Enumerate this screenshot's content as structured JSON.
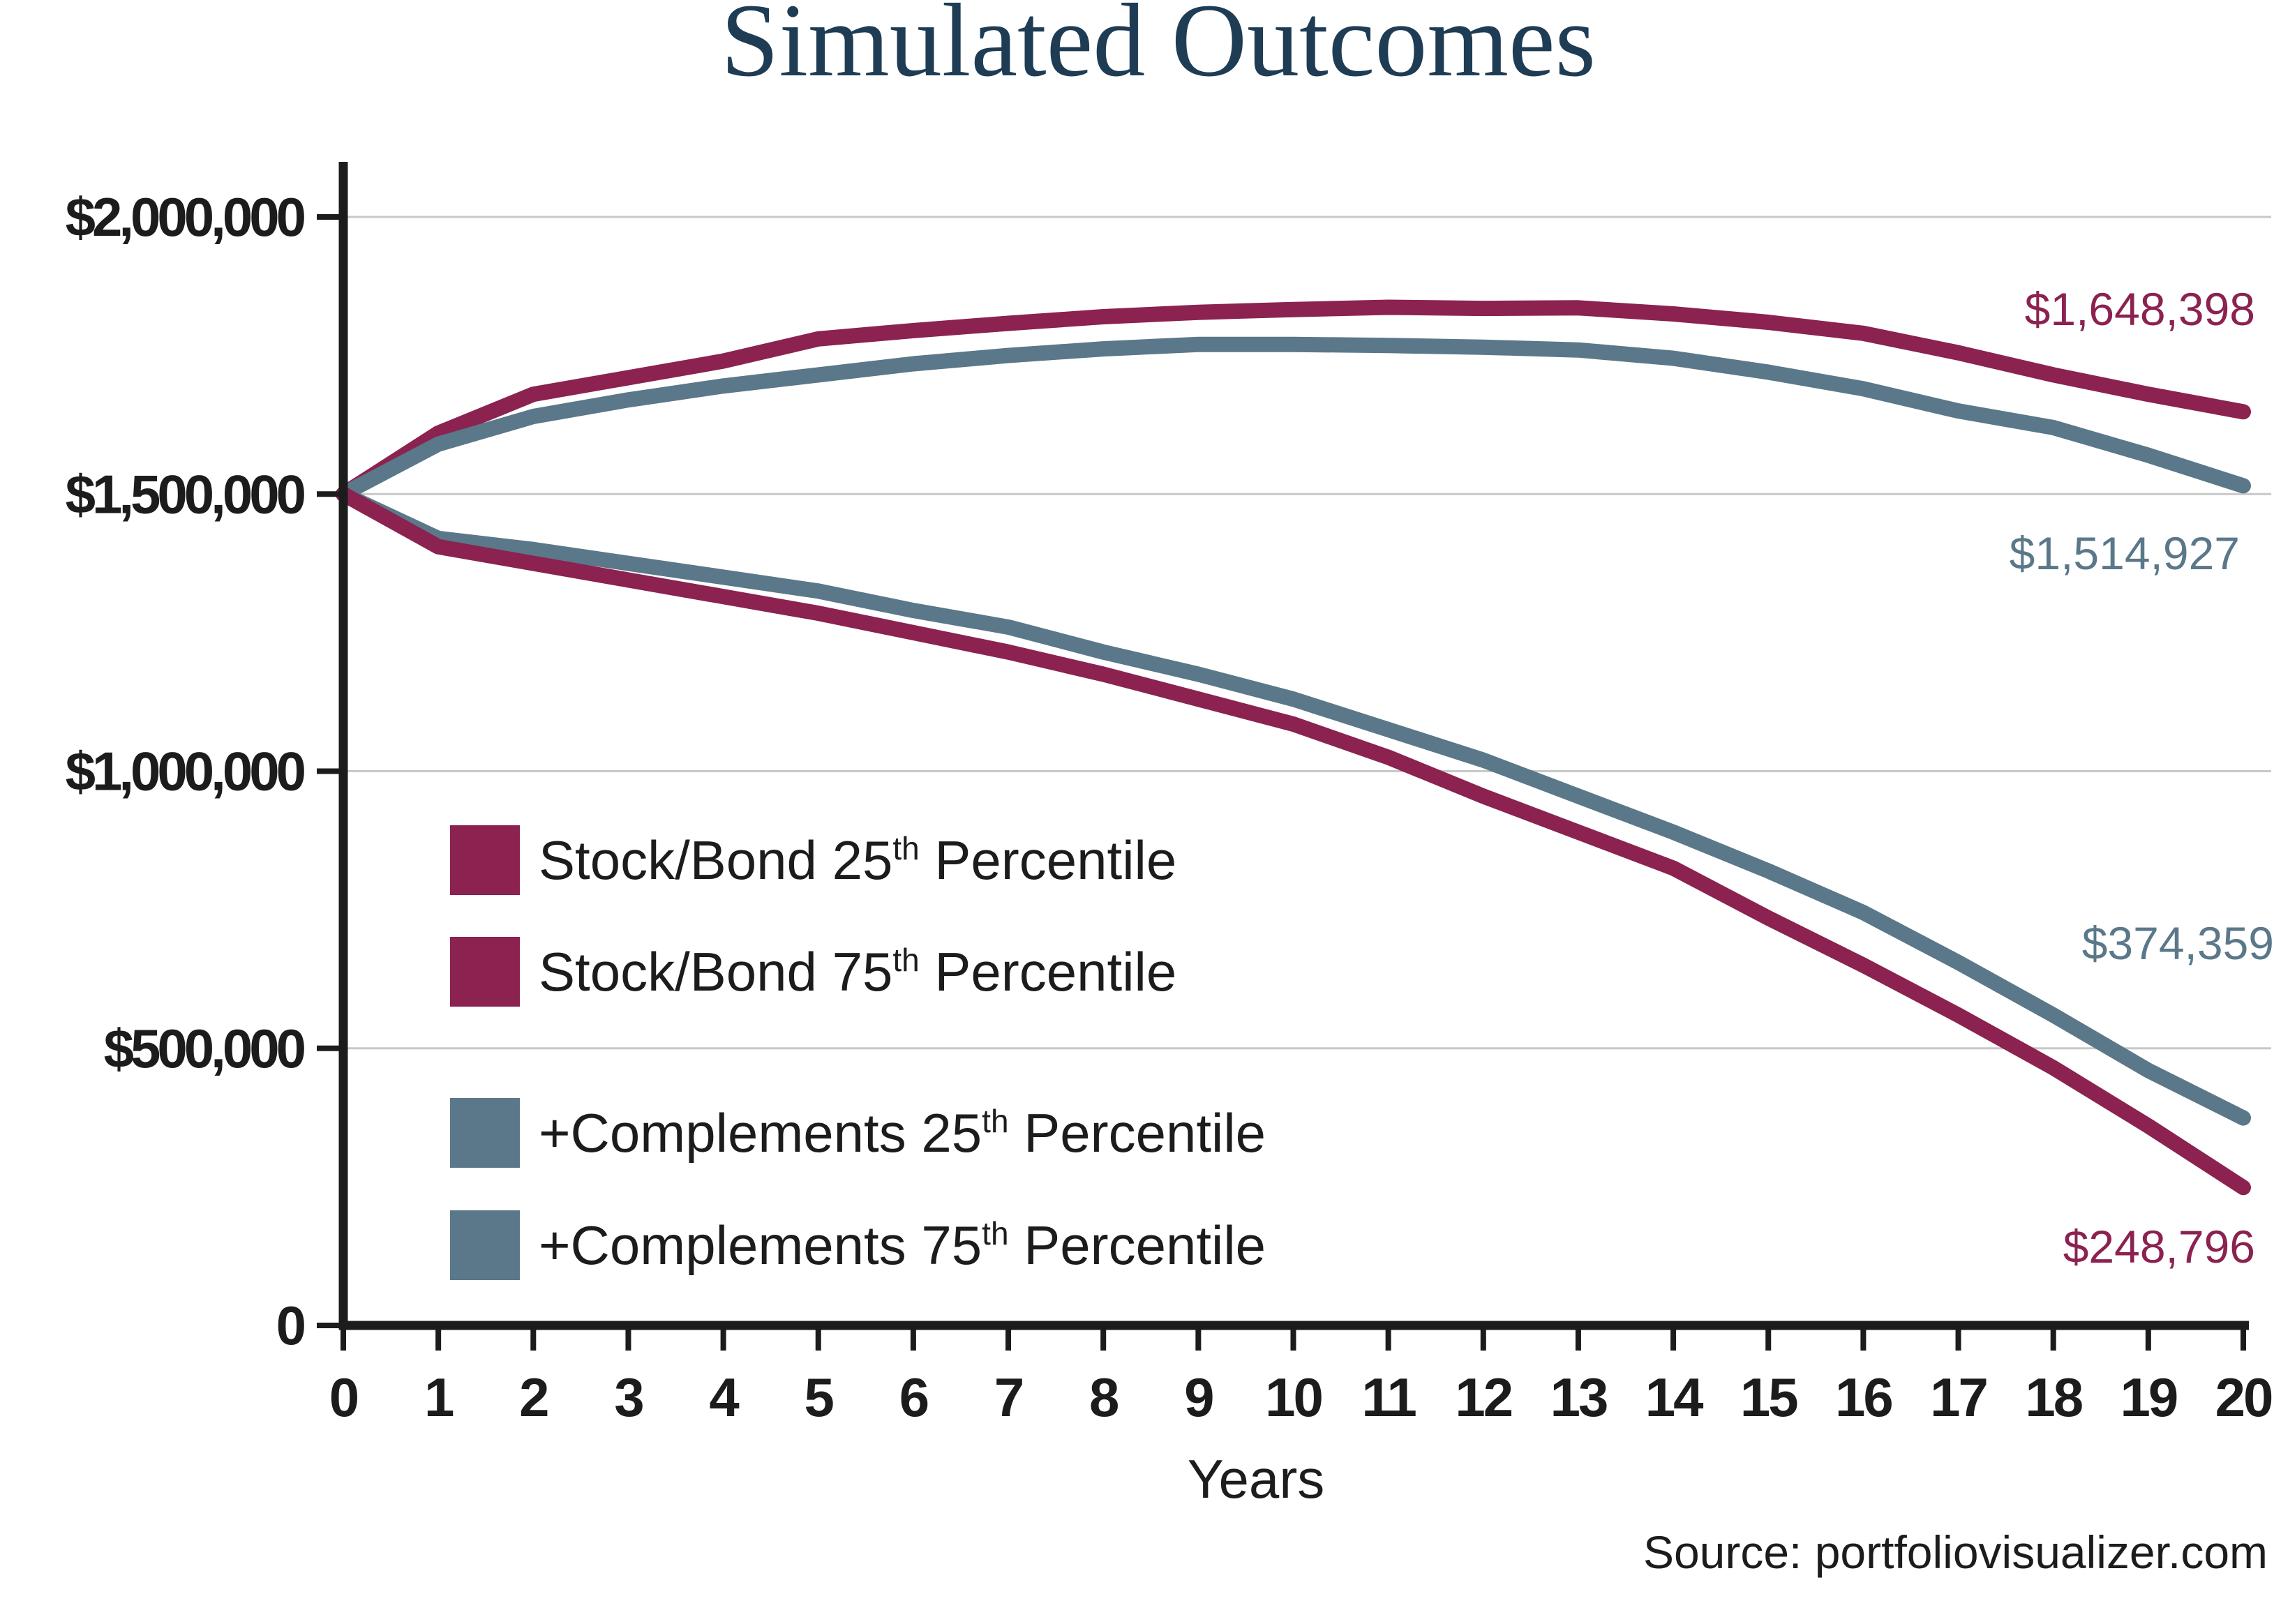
{
  "chart_data": {
    "type": "line",
    "title": "Simulated Outcomes",
    "xlabel": "Years",
    "ylabel": "",
    "x": [
      0,
      1,
      2,
      3,
      4,
      5,
      6,
      7,
      8,
      9,
      10,
      11,
      12,
      13,
      14,
      15,
      16,
      17,
      18,
      19,
      20
    ],
    "xlim": [
      0,
      20
    ],
    "ylim": [
      0,
      2000000
    ],
    "yticks": [
      0,
      500000,
      1000000,
      1500000,
      2000000
    ],
    "ytick_labels": [
      "0",
      "$500,000",
      "$1,000,000",
      "$1,500,000",
      "$2,000,000"
    ],
    "xtick_labels": [
      "0",
      "1",
      "2",
      "3",
      "4",
      "5",
      "6",
      "7",
      "8",
      "9",
      "10",
      "11",
      "12",
      "13",
      "14",
      "15",
      "16",
      "17",
      "18",
      "19",
      "20"
    ],
    "grid": true,
    "series": [
      {
        "name": "Stock/Bond 75th Percentile",
        "color": "#8b2250",
        "values": [
          1500000,
          1610000,
          1680000,
          1710000,
          1740000,
          1780000,
          1795000,
          1808000,
          1820000,
          1828000,
          1833000,
          1837000,
          1835000,
          1836000,
          1825000,
          1810000,
          1790000,
          1755000,
          1715000,
          1680000,
          1648398
        ],
        "end_label": "$1,648,398"
      },
      {
        "name": "+Complements 75th Percentile",
        "color": "#5a7889",
        "values": [
          1500000,
          1590000,
          1640000,
          1670000,
          1695000,
          1715000,
          1735000,
          1750000,
          1762000,
          1770000,
          1770000,
          1768000,
          1765000,
          1760000,
          1745000,
          1720000,
          1690000,
          1650000,
          1620000,
          1570000,
          1514927
        ],
        "end_label": "$1,514,927"
      },
      {
        "name": "+Complements 25th Percentile",
        "color": "#5a7889",
        "values": [
          1500000,
          1420000,
          1400000,
          1375000,
          1350000,
          1325000,
          1290000,
          1260000,
          1215000,
          1175000,
          1130000,
          1075000,
          1020000,
          955000,
          890000,
          820000,
          745000,
          655000,
          560000,
          460000,
          374359
        ],
        "end_label": "$374,359"
      },
      {
        "name": "Stock/Bond 25th Percentile",
        "color": "#8b2250",
        "values": [
          1500000,
          1405000,
          1375000,
          1345000,
          1315000,
          1285000,
          1250000,
          1215000,
          1175000,
          1130000,
          1085000,
          1025000,
          955000,
          890000,
          825000,
          735000,
          650000,
          560000,
          465000,
          360000,
          248796
        ],
        "end_label": "$248,796"
      }
    ],
    "legend": {
      "placement": "bottom-left",
      "groups": [
        [
          {
            "prefix": "Stock/Bond 25",
            "sup": "th",
            "suffix": " Percentile",
            "color": "#8b2250"
          },
          {
            "prefix": "Stock/Bond 75",
            "sup": "th",
            "suffix": " Percentile",
            "color": "#8b2250"
          }
        ],
        [
          {
            "prefix": "+Complements 25",
            "sup": "th",
            "suffix": " Percentile",
            "color": "#5a7889"
          },
          {
            "prefix": "+Complements 75",
            "sup": "th",
            "suffix": " Percentile",
            "color": "#5a7889"
          }
        ]
      ]
    },
    "source": "Source: portfoliovisualizer.com"
  },
  "colors": {
    "title": "#1f3c55",
    "axis": "#1c1c1c",
    "grid": "#c8c8c8",
    "text": "#1c1c1c",
    "stock_bond": "#8b2250",
    "complements": "#5a7889"
  }
}
